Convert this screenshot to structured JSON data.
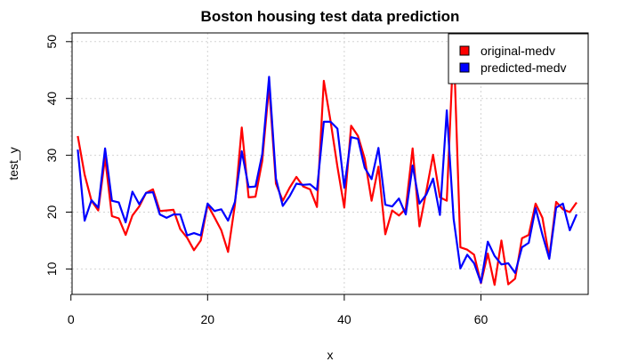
{
  "chart_data": {
    "type": "line",
    "title": "Boston housing test data prediction",
    "xlabel": "x",
    "ylabel": "test_y",
    "xlim": [
      1,
      74
    ],
    "ylim": [
      10,
      50
    ],
    "x_ticks": [
      0,
      20,
      40,
      60
    ],
    "y_ticks": [
      10,
      20,
      30,
      40,
      50
    ],
    "grid": true,
    "legend_position": "top-right",
    "series": [
      {
        "name": "original-medv",
        "color": "#ff0000",
        "values": [
          33.4,
          26.6,
          22.0,
          20.3,
          29.6,
          19.3,
          18.9,
          16.0,
          19.4,
          21.0,
          23.4,
          24.0,
          20.2,
          20.3,
          20.4,
          17.0,
          15.5,
          13.3,
          15.0,
          21.3,
          19.1,
          16.8,
          13.0,
          21.3,
          34.9,
          22.6,
          22.7,
          29.0,
          42.2,
          25.0,
          22.0,
          24.3,
          26.2,
          24.5,
          24.0,
          20.9,
          43.1,
          36.0,
          28.0,
          20.8,
          35.2,
          33.4,
          29.4,
          22.0,
          28.0,
          16.1,
          20.3,
          19.4,
          20.6,
          31.2,
          17.5,
          23.7,
          30.1,
          22.6,
          22.0,
          50.0,
          13.8,
          13.4,
          12.5,
          7.5,
          12.7,
          7.2,
          15.0,
          7.3,
          8.3,
          15.4,
          16.0,
          21.5,
          19.0,
          12.0,
          21.8,
          20.5,
          20.0,
          21.7
        ]
      },
      {
        "name": "predicted-medv",
        "color": "#0000ff",
        "values": [
          31.0,
          18.5,
          22.1,
          20.8,
          31.2,
          22.0,
          21.7,
          18.2,
          23.6,
          21.4,
          23.4,
          23.5,
          19.6,
          19.0,
          19.6,
          19.6,
          15.9,
          16.3,
          15.9,
          21.5,
          20.2,
          20.5,
          18.5,
          21.8,
          30.7,
          24.4,
          24.5,
          30.2,
          43.8,
          25.9,
          21.1,
          22.8,
          25.0,
          24.8,
          24.9,
          23.9,
          35.9,
          35.9,
          34.7,
          24.3,
          33.2,
          32.9,
          27.8,
          25.8,
          31.3,
          21.3,
          21.0,
          22.4,
          19.6,
          28.2,
          21.5,
          23.1,
          25.9,
          19.5,
          37.9,
          18.8,
          10.1,
          12.5,
          11.0,
          7.6,
          14.8,
          12.3,
          10.8,
          11.0,
          9.3,
          13.8,
          14.6,
          20.7,
          16.0,
          11.8,
          20.8,
          21.5,
          16.8,
          19.6
        ]
      }
    ]
  }
}
